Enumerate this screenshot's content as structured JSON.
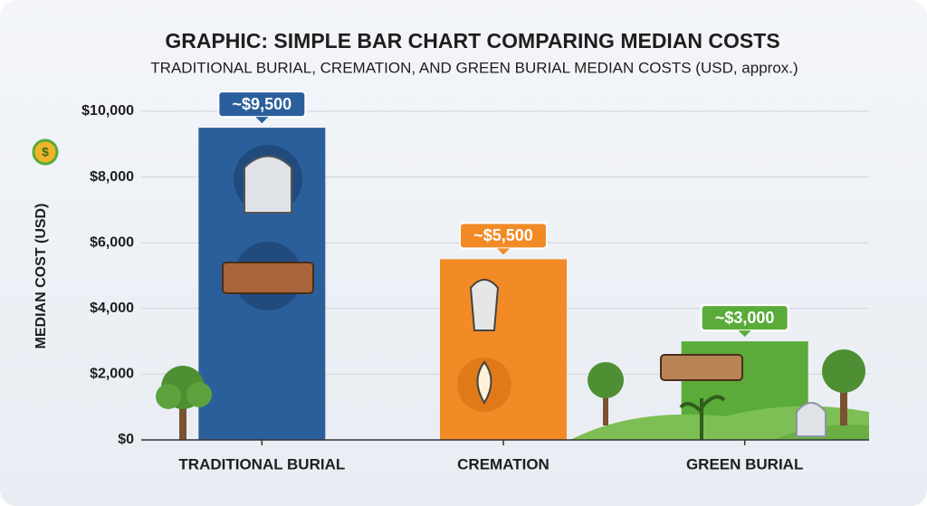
{
  "chart_data": {
    "type": "bar",
    "title": "GRAPHIC: SIMPLE BAR CHART COMPARING MEDIAN COSTS",
    "subtitle": "TRADITIONAL BURIAL, CREMATION, AND GREEN BURIAL MEDIAN COSTS (USD, approx.)",
    "y_label": "MEDIAN COST (USD)",
    "categories": [
      "TRADITIONAL BURIAL",
      "CREMATION",
      "GREEN BURIAL"
    ],
    "values": [
      9500,
      5500,
      3000
    ],
    "value_labels": [
      "~$9,500",
      "~$5,500",
      "~$3,000"
    ],
    "colors": [
      "#2b5f9c",
      "#f28b26",
      "#5aab3a"
    ],
    "ylim": [
      0,
      10000
    ],
    "yticks": [
      {
        "value": 0,
        "label": "$0"
      },
      {
        "value": 2000,
        "label": "$2,000"
      },
      {
        "value": 4000,
        "label": "$4,000"
      },
      {
        "value": 6000,
        "label": "$6,000"
      },
      {
        "value": 8000,
        "label": "$8,000"
      },
      {
        "value": 10000,
        "label": "$10,000"
      }
    ],
    "grid": true
  }
}
